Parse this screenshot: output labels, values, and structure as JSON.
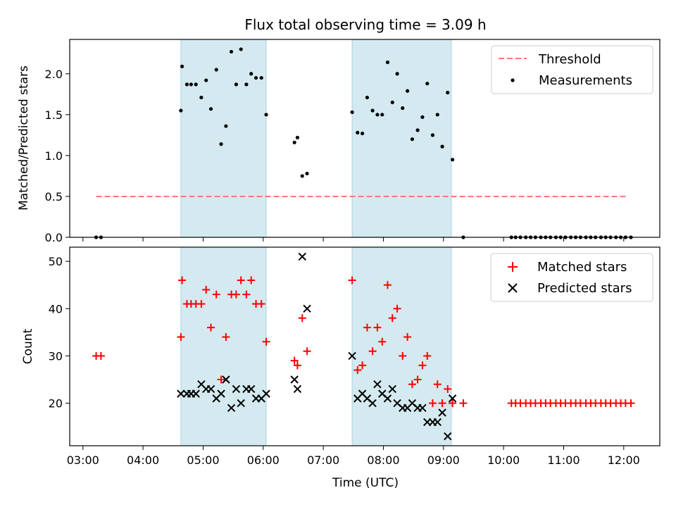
{
  "figure": {
    "title": "Flux total observing time = 3.09 h",
    "xlabel": "Time (UTC)",
    "xticks": [
      "03:00",
      "04:00",
      "05:00",
      "06:00",
      "07:00",
      "08:00",
      "09:00",
      "10:00",
      "11:00",
      "12:00"
    ],
    "xlim_hours": [
      2.78,
      12.6
    ],
    "shaded_windows_hours": [
      [
        4.63,
        6.05
      ],
      [
        7.48,
        9.13
      ]
    ],
    "shade_color": "#d4eaf0"
  },
  "chart_data": [
    {
      "type": "scatter",
      "ylabel": "Matched/Predicted stars",
      "ylim": [
        0,
        2.42
      ],
      "yticks": [
        "0.0",
        "0.5",
        "1.0",
        "1.5",
        "2.0"
      ],
      "legend_position": "top-right",
      "threshold": {
        "name": "Threshold",
        "value": 0.5,
        "x_range_hours": [
          3.22,
          12.07
        ],
        "color": "#ff7777",
        "style": "dashed"
      },
      "series": [
        {
          "name": "Measurements",
          "color": "#000000",
          "marker": "dot",
          "points": [
            [
              3.22,
              0
            ],
            [
              3.3,
              0
            ],
            [
              4.63,
              1.55
            ],
            [
              4.65,
              2.09
            ],
            [
              4.73,
              1.87
            ],
            [
              4.8,
              1.87
            ],
            [
              4.88,
              1.87
            ],
            [
              4.97,
              1.71
            ],
            [
              5.05,
              1.92
            ],
            [
              5.13,
              1.57
            ],
            [
              5.22,
              2.05
            ],
            [
              5.3,
              1.14
            ],
            [
              5.38,
              1.36
            ],
            [
              5.47,
              2.27
            ],
            [
              5.55,
              1.87
            ],
            [
              5.63,
              2.3
            ],
            [
              5.72,
              1.87
            ],
            [
              5.8,
              2.0
            ],
            [
              5.88,
              1.95
            ],
            [
              5.97,
              1.95
            ],
            [
              6.05,
              1.5
            ],
            [
              6.52,
              1.16
            ],
            [
              6.57,
              1.22
            ],
            [
              6.65,
              0.75
            ],
            [
              6.73,
              0.78
            ],
            [
              7.48,
              1.53
            ],
            [
              7.57,
              1.28
            ],
            [
              7.65,
              1.27
            ],
            [
              7.73,
              1.71
            ],
            [
              7.82,
              1.55
            ],
            [
              7.9,
              1.5
            ],
            [
              7.98,
              1.5
            ],
            [
              8.07,
              2.14
            ],
            [
              8.15,
              1.65
            ],
            [
              8.23,
              2.0
            ],
            [
              8.32,
              1.58
            ],
            [
              8.4,
              1.79
            ],
            [
              8.48,
              1.2
            ],
            [
              8.57,
              1.31
            ],
            [
              8.65,
              1.47
            ],
            [
              8.73,
              1.88
            ],
            [
              8.82,
              1.25
            ],
            [
              8.9,
              1.5
            ],
            [
              8.98,
              1.11
            ],
            [
              9.07,
              1.77
            ],
            [
              9.15,
              0.95
            ],
            [
              9.33,
              0
            ],
            [
              10.13,
              0
            ],
            [
              10.2,
              0
            ],
            [
              10.28,
              0
            ],
            [
              10.37,
              0
            ],
            [
              10.45,
              0
            ],
            [
              10.53,
              0
            ],
            [
              10.62,
              0
            ],
            [
              10.7,
              0
            ],
            [
              10.78,
              0
            ],
            [
              10.87,
              0
            ],
            [
              10.95,
              0
            ],
            [
              11.03,
              0
            ],
            [
              11.12,
              0
            ],
            [
              11.2,
              0
            ],
            [
              11.28,
              0
            ],
            [
              11.37,
              0
            ],
            [
              11.45,
              0
            ],
            [
              11.53,
              0
            ],
            [
              11.62,
              0
            ],
            [
              11.7,
              0
            ],
            [
              11.78,
              0
            ],
            [
              11.87,
              0
            ],
            [
              11.95,
              0
            ],
            [
              12.03,
              0
            ],
            [
              12.12,
              0
            ]
          ]
        }
      ]
    },
    {
      "type": "scatter",
      "ylabel": "Count",
      "ylim": [
        11,
        53
      ],
      "yticks": [
        "20",
        "30",
        "40",
        "50"
      ],
      "legend_position": "top-right",
      "series": [
        {
          "name": "Matched stars",
          "color": "#ff0000",
          "marker": "plus",
          "points": [
            [
              3.22,
              30
            ],
            [
              3.3,
              30
            ],
            [
              4.63,
              34
            ],
            [
              4.65,
              46
            ],
            [
              4.73,
              41
            ],
            [
              4.8,
              41
            ],
            [
              4.88,
              41
            ],
            [
              4.97,
              41
            ],
            [
              5.05,
              44
            ],
            [
              5.13,
              36
            ],
            [
              5.22,
              43
            ],
            [
              5.3,
              25
            ],
            [
              5.38,
              34
            ],
            [
              5.47,
              43
            ],
            [
              5.55,
              43
            ],
            [
              5.63,
              46
            ],
            [
              5.72,
              43
            ],
            [
              5.8,
              46
            ],
            [
              5.88,
              41
            ],
            [
              5.97,
              41
            ],
            [
              6.05,
              33
            ],
            [
              6.52,
              29
            ],
            [
              6.57,
              28
            ],
            [
              6.65,
              38
            ],
            [
              6.73,
              31
            ],
            [
              7.48,
              46
            ],
            [
              7.57,
              27
            ],
            [
              7.65,
              28
            ],
            [
              7.73,
              36
            ],
            [
              7.82,
              31
            ],
            [
              7.9,
              36
            ],
            [
              7.98,
              33
            ],
            [
              8.07,
              45
            ],
            [
              8.15,
              38
            ],
            [
              8.23,
              40
            ],
            [
              8.32,
              30
            ],
            [
              8.4,
              34
            ],
            [
              8.48,
              24
            ],
            [
              8.57,
              25
            ],
            [
              8.65,
              28
            ],
            [
              8.73,
              30
            ],
            [
              8.82,
              20
            ],
            [
              8.9,
              24
            ],
            [
              8.98,
              20
            ],
            [
              9.07,
              23
            ],
            [
              9.15,
              20
            ],
            [
              9.33,
              20
            ],
            [
              10.13,
              20
            ],
            [
              10.2,
              20
            ],
            [
              10.28,
              20
            ],
            [
              10.37,
              20
            ],
            [
              10.45,
              20
            ],
            [
              10.53,
              20
            ],
            [
              10.62,
              20
            ],
            [
              10.7,
              20
            ],
            [
              10.78,
              20
            ],
            [
              10.87,
              20
            ],
            [
              10.95,
              20
            ],
            [
              11.03,
              20
            ],
            [
              11.12,
              20
            ],
            [
              11.2,
              20
            ],
            [
              11.28,
              20
            ],
            [
              11.37,
              20
            ],
            [
              11.45,
              20
            ],
            [
              11.53,
              20
            ],
            [
              11.62,
              20
            ],
            [
              11.7,
              20
            ],
            [
              11.78,
              20
            ],
            [
              11.87,
              20
            ],
            [
              11.95,
              20
            ],
            [
              12.03,
              20
            ],
            [
              12.12,
              20
            ]
          ]
        },
        {
          "name": "Predicted stars",
          "color": "#000000",
          "marker": "x",
          "points": [
            [
              4.63,
              22
            ],
            [
              4.73,
              22
            ],
            [
              4.8,
              22
            ],
            [
              4.88,
              22
            ],
            [
              4.97,
              24
            ],
            [
              5.05,
              23
            ],
            [
              5.13,
              23
            ],
            [
              5.22,
              21
            ],
            [
              5.3,
              22
            ],
            [
              5.38,
              25
            ],
            [
              5.47,
              19
            ],
            [
              5.55,
              23
            ],
            [
              5.63,
              20
            ],
            [
              5.72,
              23
            ],
            [
              5.8,
              23
            ],
            [
              5.88,
              21
            ],
            [
              5.97,
              21
            ],
            [
              6.05,
              22
            ],
            [
              6.52,
              25
            ],
            [
              6.57,
              23
            ],
            [
              6.65,
              51
            ],
            [
              6.73,
              40
            ],
            [
              7.48,
              30
            ],
            [
              7.57,
              21
            ],
            [
              7.65,
              22
            ],
            [
              7.73,
              21
            ],
            [
              7.82,
              20
            ],
            [
              7.9,
              24
            ],
            [
              7.98,
              22
            ],
            [
              8.07,
              21
            ],
            [
              8.15,
              23
            ],
            [
              8.23,
              20
            ],
            [
              8.32,
              19
            ],
            [
              8.4,
              19
            ],
            [
              8.48,
              20
            ],
            [
              8.57,
              19
            ],
            [
              8.65,
              19
            ],
            [
              8.73,
              16
            ],
            [
              8.82,
              16
            ],
            [
              8.9,
              16
            ],
            [
              8.98,
              18
            ],
            [
              9.07,
              13
            ],
            [
              9.15,
              21
            ]
          ]
        }
      ]
    }
  ]
}
